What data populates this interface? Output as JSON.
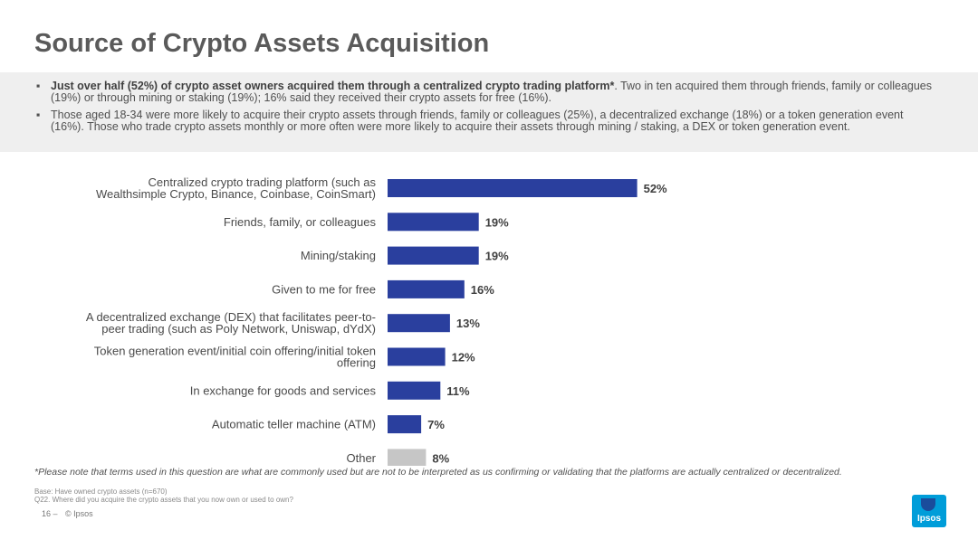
{
  "page": {
    "title": "Source of Crypto Assets Acquisition",
    "summary": [
      {
        "bold": "Just over half (52%) of crypto asset owners acquired them through a centralized crypto trading platform*",
        "text": ". Two in ten acquired them through friends, family or colleagues (19%) or through mining or staking (19%); 16% said they received their crypto assets for free (16%)."
      },
      {
        "bold": "",
        "text": "Those aged 18-34 were more likely to acquire their crypto assets through friends, family or colleagues (25%), a decentralized exchange (18%) or a token generation event (16%). Those who trade crypto assets monthly or more often were more likely to acquire their assets through mining / staking, a DEX or token generation event."
      }
    ],
    "bullet_mark": "▪",
    "footnote": "*Please note that terms used in this question are what are commonly used but are not to be interpreted as us confirming or validating that the platforms are actually centralized or decentralized.",
    "base": "Base: Have owned crypto assets (n=670)",
    "question": "Q22. Where did you acquire the crypto assets that you now own or used to own?",
    "page_number": "16 –",
    "copyright": "© Ipsos",
    "logo_text": "Ipsos",
    "colors": {
      "primary_bar": "#2a3f9e",
      "other_bar": "#c6c6c6",
      "logo_blue": "#009dd9"
    }
  },
  "chart_data": {
    "type": "bar",
    "orientation": "horizontal",
    "categories": [
      [
        "Centralized crypto trading platform (such as",
        "Wealthsimple Crypto, Binance, Coinbase, CoinSmart)"
      ],
      [
        "Friends, family, or colleagues"
      ],
      [
        "Mining/staking"
      ],
      [
        "Given to me for free"
      ],
      [
        "A decentralized exchange (DEX) that facilitates peer-to-",
        "peer trading (such as Poly Network, Uniswap, dYdX)"
      ],
      [
        "Token generation event/initial coin offering/initial token",
        "offering"
      ],
      [
        "In exchange for goods and services"
      ],
      [
        "Automatic teller machine (ATM)"
      ],
      [
        "Other"
      ]
    ],
    "values": [
      52,
      19,
      19,
      16,
      13,
      12,
      11,
      7,
      8
    ],
    "value_labels": [
      "52%",
      "19%",
      "19%",
      "16%",
      "13%",
      "12%",
      "11%",
      "7%",
      "8%"
    ],
    "highlight_gray": [
      false,
      false,
      false,
      false,
      false,
      false,
      false,
      false,
      true
    ],
    "xlim": [
      0,
      100
    ],
    "grid": false,
    "title": "",
    "xlabel": "",
    "ylabel": ""
  }
}
